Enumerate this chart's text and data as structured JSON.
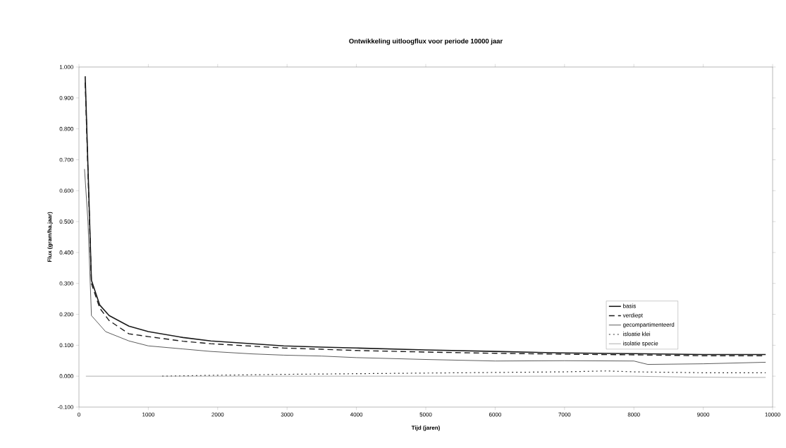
{
  "chart_data": {
    "type": "line",
    "title": "Ontwikkeling uitloogflux voor periode 10000 jaar",
    "xlabel": "Tijd (jaren)",
    "ylabel": "Flux (gram/ha.jaar)",
    "xlim": [
      0,
      10000
    ],
    "ylim": [
      -0.1,
      1.0
    ],
    "xticks": [
      0,
      1000,
      2000,
      3000,
      4000,
      5000,
      6000,
      7000,
      8000,
      9000,
      10000
    ],
    "yticks": [
      {
        "value": -0.1,
        "label": "-0.100"
      },
      {
        "value": 0,
        "label": "0.000"
      },
      {
        "value": 0.1,
        "label": "0.100"
      },
      {
        "value": 0.2,
        "label": "0.200"
      },
      {
        "value": 0.3,
        "label": "0.300"
      },
      {
        "value": 0.4,
        "label": "0.400"
      },
      {
        "value": 0.5,
        "label": "0.500"
      },
      {
        "value": 0.6,
        "label": "0.600"
      },
      {
        "value": 0.7,
        "label": "0.700"
      },
      {
        "value": 0.8,
        "label": "0.800"
      },
      {
        "value": 0.9,
        "label": "0.900"
      },
      {
        "value": 1.0,
        "label": "1.000"
      }
    ],
    "grid": false,
    "legend": "right",
    "marker": "none",
    "series": [
      {
        "name": "basis",
        "color": "#1a1a1a",
        "line_style": "solid",
        "x": [
          90,
          180,
          300,
          435,
          720,
          1000,
          1500,
          1900,
          2500,
          2950,
          3500,
          4000,
          5000,
          6000,
          7000,
          8000,
          9000,
          9900
        ],
        "values": [
          0.97,
          0.31,
          0.23,
          0.196,
          0.162,
          0.144,
          0.125,
          0.114,
          0.105,
          0.098,
          0.094,
          0.091,
          0.085,
          0.08,
          0.075,
          0.073,
          0.07,
          0.07
        ]
      },
      {
        "name": "verdiept",
        "color": "#1a1a1a",
        "line_style": "dashed",
        "x": [
          90,
          180,
          300,
          435,
          720,
          1000,
          1500,
          1900,
          2500,
          2950,
          3500,
          4000,
          5000,
          6000,
          7000,
          8000,
          9000,
          9900
        ],
        "values": [
          0.95,
          0.3,
          0.22,
          0.18,
          0.137,
          0.128,
          0.113,
          0.105,
          0.097,
          0.091,
          0.087,
          0.083,
          0.078,
          0.074,
          0.071,
          0.069,
          0.066,
          0.066
        ]
      },
      {
        "name": "gecompartimenteerd",
        "color": "#333333",
        "line_style": "solid",
        "x": [
          80,
          130,
          180,
          385,
          720,
          1000,
          1500,
          1900,
          2500,
          2950,
          3500,
          4000,
          5000,
          6000,
          7000,
          8000,
          8200,
          9000,
          9900
        ],
        "values": [
          0.67,
          0.5,
          0.196,
          0.144,
          0.114,
          0.098,
          0.088,
          0.08,
          0.072,
          0.068,
          0.065,
          0.06,
          0.054,
          0.049,
          0.05,
          0.049,
          0.038,
          0.04,
          0.045
        ]
      },
      {
        "name": "isloatie klei",
        "color": "#333333",
        "line_style": "dotted",
        "x": [
          1200,
          2000,
          3000,
          4000,
          5000,
          6000,
          7000,
          7600,
          8000,
          9000,
          9900
        ],
        "values": [
          0.0,
          0.003,
          0.006,
          0.008,
          0.01,
          0.012,
          0.014,
          0.017,
          0.014,
          0.011,
          0.011
        ]
      },
      {
        "name": "isolatie specie",
        "color": "#999999",
        "line_style": "solid",
        "x": [
          100,
          1000,
          2000,
          3000,
          4000,
          5000,
          6000,
          7000,
          8000,
          8800,
          9500,
          9900
        ],
        "values": [
          0.0,
          0.0,
          0.0,
          0.0,
          0.0,
          0.0,
          0.0,
          0.0,
          0.0,
          -0.003,
          -0.004,
          -0.004
        ]
      }
    ]
  }
}
